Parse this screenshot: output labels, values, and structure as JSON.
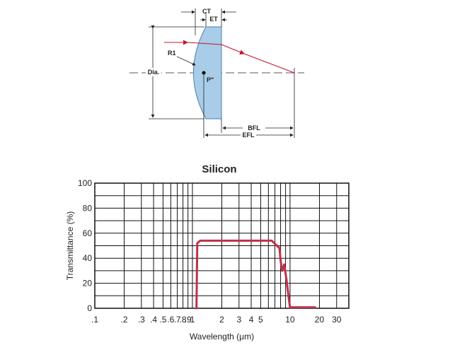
{
  "diagram": {
    "labels": {
      "ct": "CT",
      "et": "ET",
      "r1": "R1",
      "dia": "Dia.",
      "p": "P\"",
      "bfl": "BFL",
      "efl": "EFL"
    },
    "colors": {
      "lens_fill": "#a9cde8",
      "lens_stroke": "#4a7fb0",
      "ray": "#c8102e",
      "line": "#222222"
    }
  },
  "chart_data": {
    "type": "line",
    "title": "Silicon",
    "xlabel": "Wavelength (μm)",
    "ylabel": "Transmittance (%)",
    "x_scale": "log",
    "xlim": [
      0.1,
      40
    ],
    "ylim": [
      0,
      100
    ],
    "grid": true,
    "x_tick_values": [
      0.1,
      0.2,
      0.3,
      0.4,
      0.5,
      0.6,
      0.7,
      0.8,
      0.9,
      1,
      2,
      3,
      4,
      5,
      10,
      20,
      30
    ],
    "x_tick_labels": [
      ".1",
      ".2",
      ".3",
      ".4",
      ".5",
      ".6",
      ".7",
      ".8",
      ".9",
      "1",
      "2",
      "3",
      "4",
      "5",
      "10",
      "20",
      "30"
    ],
    "y_tick_values": [
      0,
      20,
      40,
      60,
      80,
      100
    ],
    "y_tick_labels": [
      "0",
      "20",
      "40",
      "60",
      "80",
      "100"
    ],
    "series": [
      {
        "color": "#c0304a",
        "x": [
          1.1,
          1.12,
          1.2,
          1.5,
          2,
          3,
          5,
          6.5,
          7.8,
          8.0,
          8.3,
          8.7,
          9.0,
          9.3,
          9.7,
          10.0,
          10.2,
          11,
          15,
          18
        ],
        "y": [
          0,
          52,
          54,
          54,
          54,
          54,
          54,
          54,
          48,
          38,
          30,
          35,
          28,
          20,
          8,
          0.8,
          0.8,
          0.8,
          0.8,
          0.8
        ]
      }
    ]
  }
}
